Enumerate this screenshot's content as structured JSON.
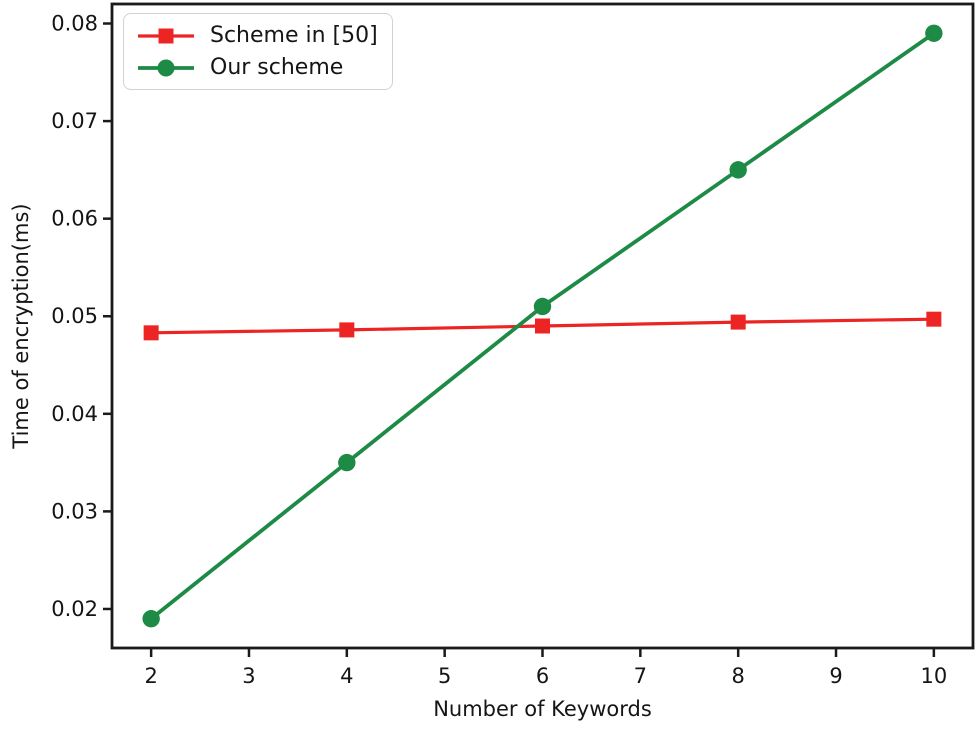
{
  "figure": {
    "background": "#ffffff",
    "axis_color": "#1a1a1a",
    "text_color": "#151515",
    "legend_border_color": "#d2d2d2"
  },
  "chart_data": {
    "type": "line",
    "title": "",
    "xlabel": "Number of Keywords",
    "ylabel": "Time of encryption(ms)",
    "x": [
      2,
      4,
      6,
      8,
      10
    ],
    "series": [
      {
        "name": "Scheme in [50]",
        "color": "#ec2424",
        "marker": "square",
        "values": [
          0.0483,
          0.0486,
          0.049,
          0.0494,
          0.0497
        ]
      },
      {
        "name": "Our scheme",
        "color": "#1d8a45",
        "marker": "circle",
        "values": [
          0.019,
          0.035,
          0.051,
          0.065,
          0.079
        ]
      }
    ],
    "xticks": [
      2,
      3,
      4,
      5,
      6,
      7,
      8,
      9,
      10
    ],
    "yticks": [
      0.02,
      0.03,
      0.04,
      0.05,
      0.06,
      0.07,
      0.08
    ],
    "xlim": [
      1.6,
      10.4
    ],
    "ylim": [
      0.016,
      0.082
    ],
    "grid": false,
    "legend_position": "upper-left"
  }
}
